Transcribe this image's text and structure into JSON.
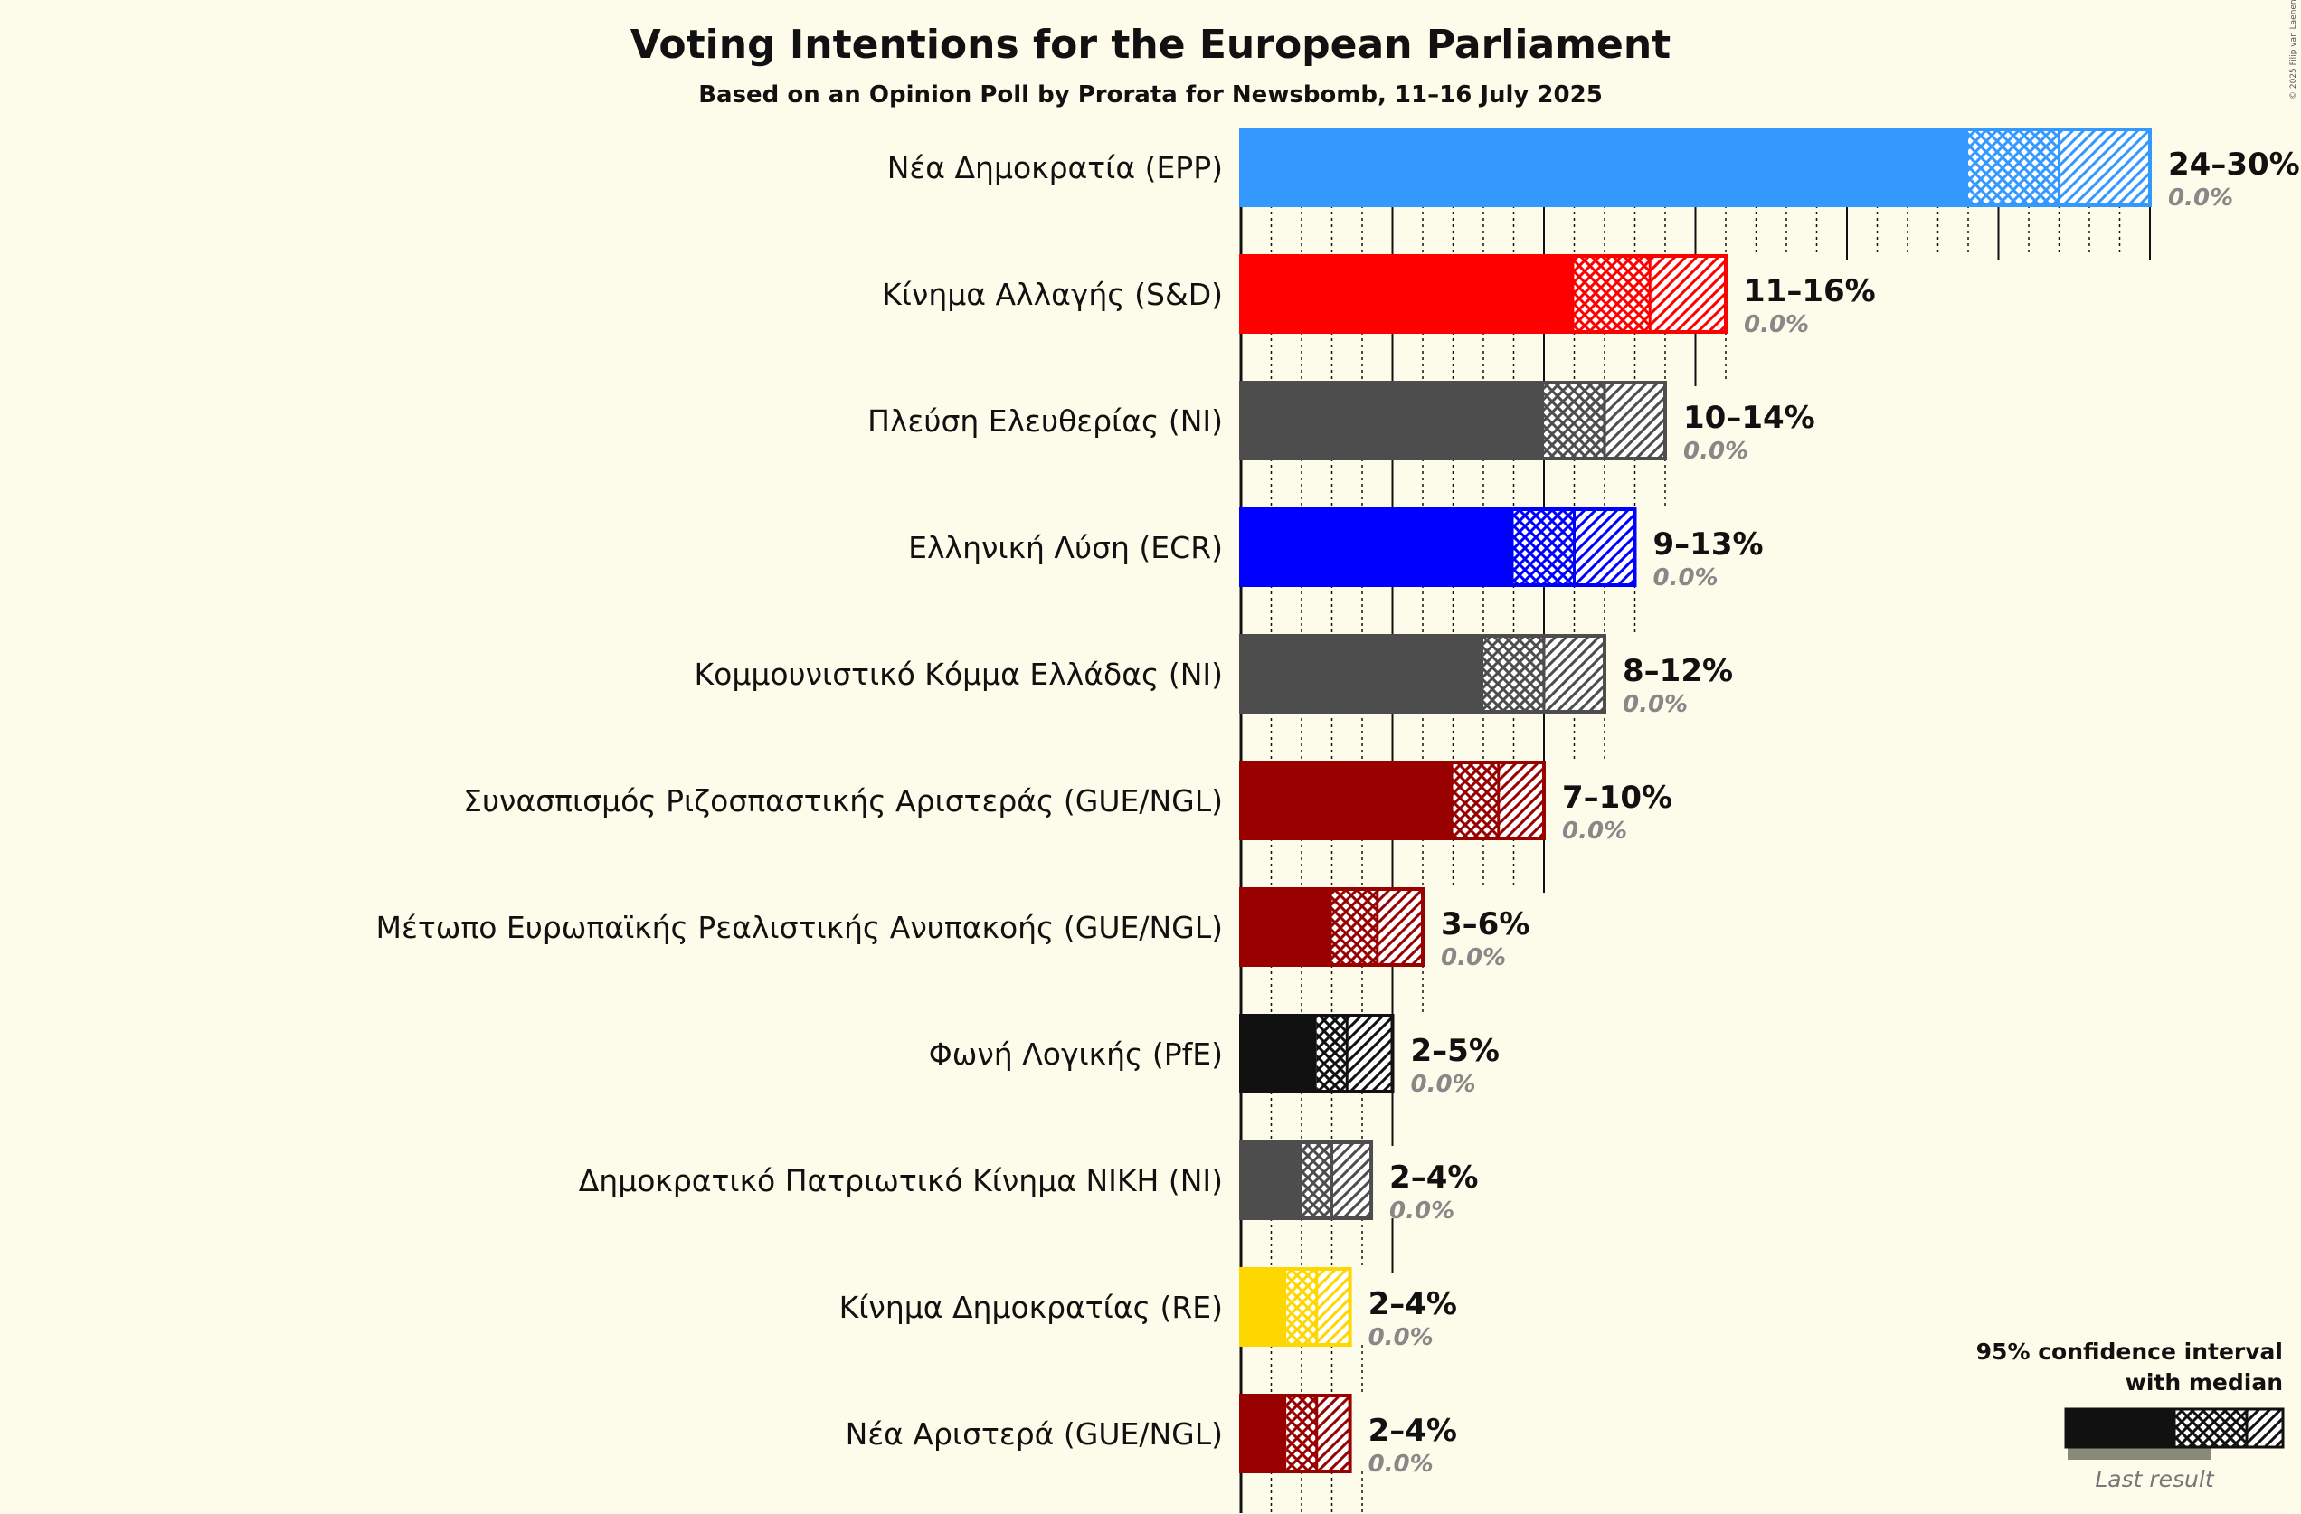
{
  "chart_data": {
    "type": "bar",
    "title": "Voting Intentions for the European Parliament",
    "subtitle": "Based on an Opinion Poll by Prorata for Newsbomb, 11–16 July 2025",
    "copyright": "© 2025 Filip van Laenen",
    "legend": {
      "title_line1": "95% confidence interval",
      "title_line2": "with median",
      "last_result": "Last result",
      "placement": "bottom-right"
    },
    "series": [
      {
        "name": "Νέα Δημοκρατία (EPP)",
        "color": "#3399ff",
        "low": 24,
        "median": 27,
        "high": 30,
        "range_label": "24–30%",
        "last_label": "0.0%",
        "last_result": 0.0
      },
      {
        "name": "Κίνημα Αλλαγής (S&D)",
        "color": "#ff0000",
        "low": 11,
        "median": 13.5,
        "high": 16,
        "range_label": "11–16%",
        "last_label": "0.0%",
        "last_result": 0.0
      },
      {
        "name": "Πλεύση Ελευθερίας (NI)",
        "color": "#4d4d4d",
        "low": 10,
        "median": 12,
        "high": 14,
        "range_label": "10–14%",
        "last_label": "0.0%",
        "last_result": 0.0
      },
      {
        "name": "Ελληνική Λύση (ECR)",
        "color": "#0000ff",
        "low": 9,
        "median": 11,
        "high": 13,
        "range_label": "9–13%",
        "last_label": "0.0%",
        "last_result": 0.0
      },
      {
        "name": "Κομμουνιστικό Κόμμα Ελλάδας (NI)",
        "color": "#4d4d4d",
        "low": 8,
        "median": 10,
        "high": 12,
        "range_label": "8–12%",
        "last_label": "0.0%",
        "last_result": 0.0
      },
      {
        "name": "Συνασπισμός Ριζοσπαστικής Αριστεράς (GUE/NGL)",
        "color": "#990000",
        "low": 7,
        "median": 8.5,
        "high": 10,
        "range_label": "7–10%",
        "last_label": "0.0%",
        "last_result": 0.0
      },
      {
        "name": "Μέτωπο Ευρωπαϊκής Ρεαλιστικής Ανυπακοής (GUE/NGL)",
        "color": "#990000",
        "low": 3,
        "median": 4.5,
        "high": 6,
        "range_label": "3–6%",
        "last_label": "0.0%",
        "last_result": 0.0
      },
      {
        "name": "Φωνή Λογικής (PfE)",
        "color": "#111111",
        "low": 2.5,
        "median": 3.5,
        "high": 5,
        "range_label": "2–5%",
        "last_label": "0.0%",
        "last_result": 0.0
      },
      {
        "name": "Δημοκρατικό Πατριωτικό Κίνημα ΝΙΚΗ (NI)",
        "color": "#4d4d4d",
        "low": 2,
        "median": 3,
        "high": 4.3,
        "range_label": "2–4%",
        "last_label": "0.0%",
        "last_result": 0.0
      },
      {
        "name": "Κίνημα Δημοκρατίας (RE)",
        "color": "#ffd700",
        "low": 1.5,
        "median": 2.5,
        "high": 3.6,
        "range_label": "2–4%",
        "last_label": "0.0%",
        "last_result": 0.0
      },
      {
        "name": "Νέα Αριστερά (GUE/NGL)",
        "color": "#990000",
        "low": 1.5,
        "median": 2.5,
        "high": 3.6,
        "range_label": "2–4%",
        "last_label": "0.0%",
        "last_result": 0.0
      }
    ]
  }
}
